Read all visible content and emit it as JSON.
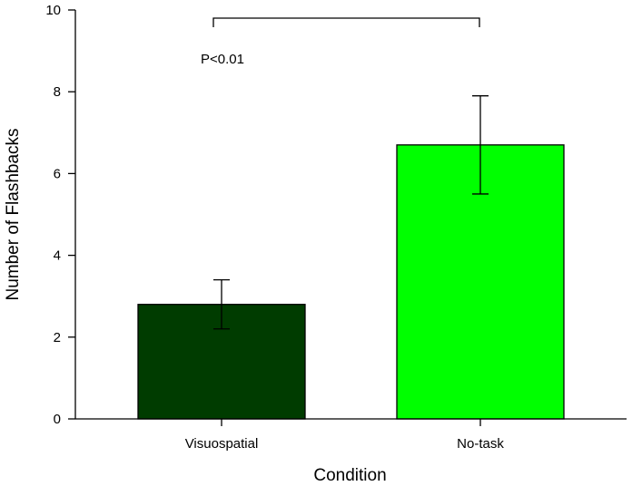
{
  "chart_data": {
    "type": "bar",
    "categories": [
      "Visuospatial",
      "No-task"
    ],
    "values": [
      2.8,
      6.7
    ],
    "error_bars": [
      {
        "lower": 2.2,
        "upper": 3.4
      },
      {
        "lower": 5.5,
        "upper": 7.9
      }
    ],
    "colors": [
      "#003c00",
      "#00ff00"
    ],
    "edge_color": "#000000",
    "xlabel": "Condition",
    "ylabel": "Number of Flashbacks",
    "ylim": [
      0,
      10
    ],
    "yticks": [
      0,
      2,
      4,
      6,
      8,
      10
    ],
    "grid": false,
    "annotation": {
      "text": "P<0.01",
      "bracket_between": [
        "Visuospatial",
        "No-task"
      ],
      "bracket_y": 9.8
    }
  }
}
